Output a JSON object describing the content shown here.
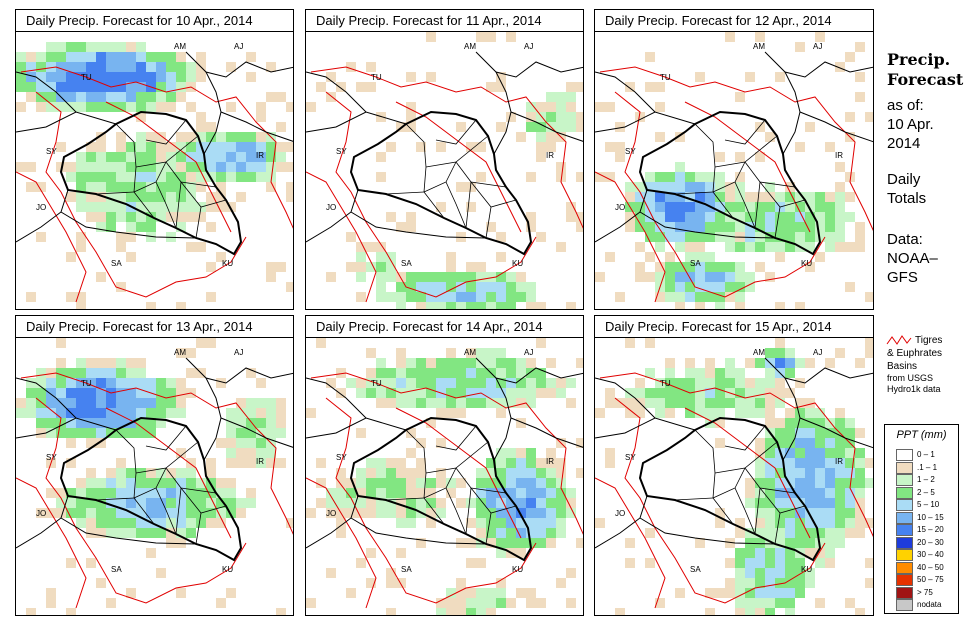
{
  "panels": [
    {
      "title": "Daily Precip. Forecast for",
      "date": "10 Apr., 2014"
    },
    {
      "title": "Daily Precip. Forecast for",
      "date": "11 Apr., 2014"
    },
    {
      "title": "Daily Precip. Forecast for",
      "date": "12 Apr., 2014"
    },
    {
      "title": "Daily Precip. Forecast for",
      "date": "13 Apr., 2014"
    },
    {
      "title": "Daily Precip. Forecast for",
      "date": "14 Apr., 2014"
    },
    {
      "title": "Daily Precip. Forecast for",
      "date": "15 Apr., 2014"
    }
  ],
  "country_labels": [
    "AM",
    "AJ",
    "TU",
    "SY",
    "IR",
    "JO",
    "SA",
    "KU"
  ],
  "sidebar": {
    "title_line1": "Precip.",
    "title_line2": "Forecast",
    "asof_label": "as of:",
    "asof_date_line1": "10 Apr.",
    "asof_date_line2": "2014",
    "totals_line1": "Daily",
    "totals_line2": "Totals",
    "data_line1": "Data:",
    "data_line2": "NOAA–",
    "data_line3": "GFS"
  },
  "basin_legend": {
    "line1": "Tigres",
    "line2": "& Euphrates",
    "line3": "Basins",
    "source1": "from USGS",
    "source2": "Hydro1k data"
  },
  "ppt_legend": {
    "title": "PPT (mm)",
    "classes": [
      {
        "label": "0 – 1",
        "color": "#ffffff"
      },
      {
        "label": ".1 – 1",
        "color": "#f0dcc0"
      },
      {
        "label": "1 – 2",
        "color": "#c8f5c8"
      },
      {
        "label": "2 – 5",
        "color": "#82e682"
      },
      {
        "label": "5 – 10",
        "color": "#aadcf5"
      },
      {
        "label": "10 – 15",
        "color": "#78b4f0"
      },
      {
        "label": "15 – 20",
        "color": "#4682f0"
      },
      {
        "label": "20 – 30",
        "color": "#1e3cdc"
      },
      {
        "label": "30 – 40",
        "color": "#ffd200"
      },
      {
        "label": "40 – 50",
        "color": "#ff8c00"
      },
      {
        "label": "50 – 75",
        "color": "#e63200"
      },
      {
        "label": "> 75",
        "color": "#a01414"
      },
      {
        "label": "nodata",
        "color": "#c8c8c8"
      }
    ]
  }
}
